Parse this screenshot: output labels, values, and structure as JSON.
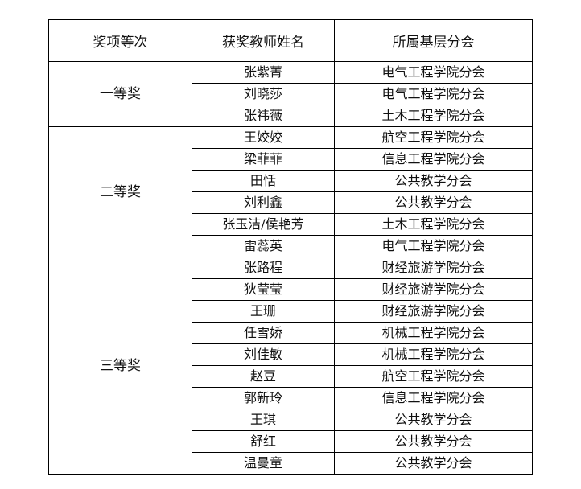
{
  "headers": [
    "奖项等次",
    "获奖教师姓名",
    "所属基层分会"
  ],
  "groups": [
    {
      "award": "一等奖",
      "rows": [
        {
          "name": "张紫菁",
          "branch": "电气工程学院分会"
        },
        {
          "name": "刘晓莎",
          "branch": "电气工程学院分会"
        },
        {
          "name": "张祎薇",
          "branch": "土木工程学院分会"
        }
      ]
    },
    {
      "award": "二等奖",
      "rows": [
        {
          "name": "王姣姣",
          "branch": "航空工程学院分会"
        },
        {
          "name": "梁菲菲",
          "branch": "信息工程学院分会"
        },
        {
          "name": "田恬",
          "branch": "公共教学分会"
        },
        {
          "name": "刘利鑫",
          "branch": "公共教学分会"
        },
        {
          "name": "张玉洁/侯艳芳",
          "branch": "土木工程学院分会"
        },
        {
          "name": "雷蕊英",
          "branch": "电气工程学院分会"
        }
      ]
    },
    {
      "award": "三等奖",
      "rows": [
        {
          "name": "张路程",
          "branch": "财经旅游学院分会"
        },
        {
          "name": "狄莹莹",
          "branch": "财经旅游学院分会"
        },
        {
          "name": "王珊",
          "branch": "财经旅游学院分会"
        },
        {
          "name": "任雪娇",
          "branch": "机械工程学院分会"
        },
        {
          "name": "刘佳敏",
          "branch": "机械工程学院分会"
        },
        {
          "name": "赵豆",
          "branch": "航空工程学院分会"
        },
        {
          "name": "郭新玲",
          "branch": "信息工程学院分会"
        },
        {
          "name": "王琪",
          "branch": "公共教学分会"
        },
        {
          "name": "舒红",
          "branch": "公共教学分会"
        },
        {
          "name": "温曼童",
          "branch": "公共教学分会"
        }
      ]
    }
  ]
}
